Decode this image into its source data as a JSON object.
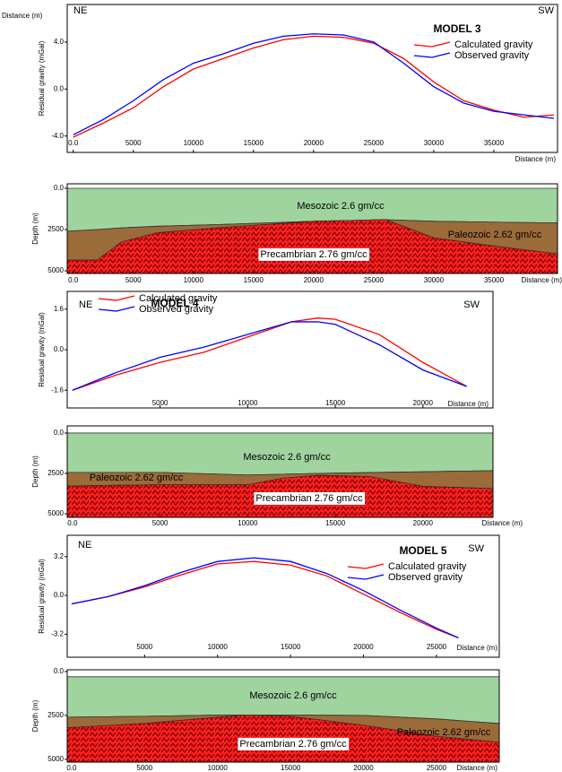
{
  "chart_data": [
    {
      "type": "line",
      "title": "MODEL 3",
      "direction_labels": [
        "NE",
        "SW"
      ],
      "corner_label": "Distance (m)",
      "x_label": "Distance (m)",
      "y_label": "Residual gravity (mGal)",
      "x": [
        0,
        2500,
        5000,
        7500,
        10000,
        12500,
        15000,
        17500,
        20000,
        22500,
        25000,
        27500,
        30000,
        32500,
        35000,
        37500,
        40000
      ],
      "series": [
        {
          "name": "Calculated gravity",
          "color": "#ff0000",
          "values": [
            -4.1,
            -2.9,
            -1.6,
            0.2,
            1.7,
            2.6,
            3.5,
            4.2,
            4.5,
            4.4,
            3.9,
            2.6,
            0.6,
            -1.0,
            -1.8,
            -2.4,
            -2.2
          ]
        },
        {
          "name": "Observed gravity",
          "color": "#0000ff",
          "values": [
            -3.9,
            -2.6,
            -1.0,
            0.8,
            2.2,
            3.0,
            3.9,
            4.5,
            4.7,
            4.6,
            4.0,
            2.2,
            0.2,
            -1.2,
            -1.9,
            -2.2,
            -2.5
          ]
        }
      ],
      "xlim": [
        -500,
        40300
      ],
      "ylim": [
        -5.4,
        7.2
      ],
      "xticks": [
        {
          "value": 0,
          "label": "0.0"
        },
        5000,
        10000,
        15000,
        20000,
        25000,
        30000,
        35000
      ],
      "yticks": [
        {
          "value": 4,
          "label": "4.0"
        },
        {
          "value": 0,
          "label": "0.0"
        },
        {
          "value": -4,
          "label": "-4.0"
        }
      ]
    },
    {
      "type": "section",
      "x_label": "Distance (m)",
      "y_label": "Depth (m)",
      "x": [
        -500,
        2000,
        4000,
        7000,
        12000,
        20000,
        26000,
        30000,
        35000,
        40300
      ],
      "series": [
        {
          "name": "Mesozoic 2.6 gm/cc",
          "color": "#9fd49f",
          "values": [
            0,
            0,
            0,
            0,
            0,
            0,
            0,
            0,
            0,
            0
          ]
        },
        {
          "name": "Paleozoic 2.62 gm/cc",
          "color": "#9c6b3a",
          "values": [
            2600,
            2500,
            2400,
            2300,
            2200,
            2000,
            1900,
            2000,
            2050,
            2100
          ]
        },
        {
          "name": "Precambrian 2.76 gm/cc",
          "color": "#ff2020",
          "values": [
            4350,
            4350,
            3260,
            2700,
            2400,
            2000,
            1900,
            3000,
            3500,
            3970
          ]
        }
      ],
      "xlim": [
        -500,
        40300
      ],
      "ylim": [
        5160,
        -270
      ],
      "xticks": [
        {
          "value": 0,
          "label": "0.0"
        },
        5000,
        10000,
        15000,
        20000,
        25000,
        30000,
        35000
      ],
      "yticks": [
        {
          "value": 0,
          "label": "0.0"
        },
        2500,
        5000
      ]
    },
    {
      "type": "line",
      "title": "MODEL 4",
      "direction_labels": [
        "NE",
        "SW"
      ],
      "x_label": "Distance (m)",
      "y_label": "Residual gravity (mGal)",
      "x": [
        0,
        2500,
        5000,
        7500,
        10000,
        12500,
        14000,
        15000,
        17500,
        20000,
        22500
      ],
      "series": [
        {
          "name": "Calculated gravity",
          "color": "#ff0000",
          "values": [
            -1.6,
            -1.0,
            -0.5,
            -0.1,
            0.5,
            1.1,
            1.25,
            1.2,
            0.6,
            -0.5,
            -1.45
          ]
        },
        {
          "name": "Observed gravity",
          "color": "#0000ff",
          "values": [
            -1.6,
            -0.9,
            -0.3,
            0.1,
            0.6,
            1.1,
            1.1,
            1.0,
            0.2,
            -0.8,
            -1.45
          ]
        }
      ],
      "xlim": [
        -300,
        24000
      ],
      "ylim": [
        -2.3,
        2.3
      ],
      "xticks": [
        5000,
        10000,
        15000,
        20000
      ],
      "yticks": [
        1.6,
        {
          "value": 0,
          "label": "0.0"
        },
        -1.6
      ]
    },
    {
      "type": "section",
      "x_label": "Distance (m)",
      "y_label": "Depth (m)",
      "x": [
        -300,
        5000,
        10000,
        12000,
        14000,
        17000,
        20000,
        24000
      ],
      "series": [
        {
          "name": "Mesozoic 2.6 gm/cc",
          "color": "#9fd49f",
          "values": [
            0,
            0,
            0,
            0,
            0,
            0,
            0,
            0
          ]
        },
        {
          "name": "Paleozoic 2.62 gm/cc",
          "color": "#9c6b3a",
          "values": [
            2440,
            2440,
            2600,
            2550,
            2500,
            2450,
            2400,
            2330
          ]
        },
        {
          "name": "Precambrian 2.76 gm/cc",
          "color": "#ff2020",
          "values": [
            3280,
            3200,
            3200,
            2800,
            2610,
            2700,
            3300,
            3440
          ]
        }
      ],
      "xlim": [
        -300,
        24000
      ],
      "ylim": [
        5220,
        -440
      ],
      "xticks": [
        {
          "value": 0,
          "label": "0.0"
        },
        5000,
        10000,
        15000,
        20000
      ],
      "yticks": [
        {
          "value": 0,
          "label": "0.0"
        },
        2500,
        5000
      ]
    },
    {
      "type": "line",
      "title": "MODEL 5",
      "direction_labels": [
        "NE",
        "SW"
      ],
      "x_label": "Distance (m)",
      "y_label": "Residual gravity (mGal)",
      "x": [
        0,
        2500,
        5000,
        7500,
        10000,
        12500,
        15000,
        17500,
        20000,
        22500,
        25000,
        26500
      ],
      "series": [
        {
          "name": "Calculated gravity",
          "color": "#ff0000",
          "values": [
            -0.7,
            -0.1,
            0.7,
            1.7,
            2.6,
            2.8,
            2.5,
            1.6,
            0.1,
            -1.4,
            -2.8,
            -3.5
          ]
        },
        {
          "name": "Observed gravity",
          "color": "#0000ff",
          "values": [
            -0.7,
            -0.1,
            0.8,
            1.9,
            2.8,
            3.1,
            2.8,
            1.8,
            0.4,
            -1.2,
            -2.7,
            -3.5
          ]
        }
      ],
      "xlim": [
        -300,
        29300
      ],
      "ylim": [
        -5.1,
        4.96
      ],
      "xticks": [
        5000,
        10000,
        15000,
        20000,
        25000
      ],
      "yticks": [
        3.2,
        {
          "value": 0,
          "label": "0.0"
        },
        -3.2
      ]
    },
    {
      "type": "section",
      "x_label": "Distance (m)",
      "y_label": "Depth (m)",
      "x": [
        -300,
        5000,
        10000,
        12000,
        15000,
        20000,
        25000,
        29300
      ],
      "series": [
        {
          "name": "Mesozoic 2.6 gm/cc",
          "color": "#9fd49f",
          "values": [
            300,
            300,
            300,
            300,
            300,
            300,
            300,
            300
          ]
        },
        {
          "name": "Paleozoic 2.62 gm/cc",
          "color": "#9c6b3a",
          "values": [
            2600,
            2550,
            2480,
            2480,
            2480,
            2500,
            2700,
            2960
          ]
        },
        {
          "name": "Precambrian 2.76 gm/cc",
          "color": "#ff2020",
          "values": [
            3200,
            2960,
            2600,
            2480,
            2550,
            3060,
            3690,
            4030
          ]
        }
      ],
      "xlim": [
        -300,
        29300
      ],
      "ylim": [
        5160,
        -100
      ],
      "xticks": [
        {
          "value": 0,
          "label": "0.0"
        },
        5000,
        10000,
        15000,
        20000,
        25000
      ],
      "yticks": [
        {
          "value": 0,
          "label": "0.0"
        },
        2500,
        5000
      ]
    }
  ]
}
